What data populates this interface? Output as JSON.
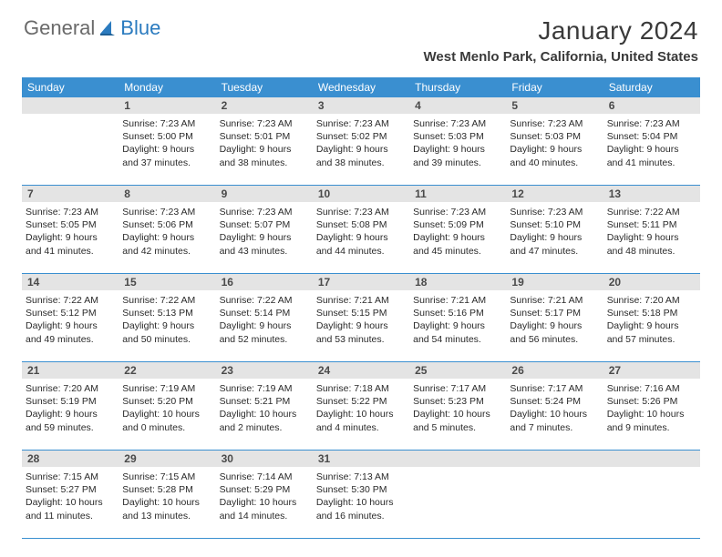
{
  "logo": {
    "text1": "General",
    "text2": "Blue",
    "icon_color": "#2b7bbf"
  },
  "title": "January 2024",
  "location": "West Menlo Park, California, United States",
  "colors": {
    "header_bg": "#3a8fd0",
    "daynum_bg": "#e4e4e4",
    "border": "#3a8fd0"
  },
  "dow": [
    "Sunday",
    "Monday",
    "Tuesday",
    "Wednesday",
    "Thursday",
    "Friday",
    "Saturday"
  ],
  "start_offset": 1,
  "days": [
    {
      "n": 1,
      "sunrise": "7:23 AM",
      "sunset": "5:00 PM",
      "daylight": "9 hours and 37 minutes."
    },
    {
      "n": 2,
      "sunrise": "7:23 AM",
      "sunset": "5:01 PM",
      "daylight": "9 hours and 38 minutes."
    },
    {
      "n": 3,
      "sunrise": "7:23 AM",
      "sunset": "5:02 PM",
      "daylight": "9 hours and 38 minutes."
    },
    {
      "n": 4,
      "sunrise": "7:23 AM",
      "sunset": "5:03 PM",
      "daylight": "9 hours and 39 minutes."
    },
    {
      "n": 5,
      "sunrise": "7:23 AM",
      "sunset": "5:03 PM",
      "daylight": "9 hours and 40 minutes."
    },
    {
      "n": 6,
      "sunrise": "7:23 AM",
      "sunset": "5:04 PM",
      "daylight": "9 hours and 41 minutes."
    },
    {
      "n": 7,
      "sunrise": "7:23 AM",
      "sunset": "5:05 PM",
      "daylight": "9 hours and 41 minutes."
    },
    {
      "n": 8,
      "sunrise": "7:23 AM",
      "sunset": "5:06 PM",
      "daylight": "9 hours and 42 minutes."
    },
    {
      "n": 9,
      "sunrise": "7:23 AM",
      "sunset": "5:07 PM",
      "daylight": "9 hours and 43 minutes."
    },
    {
      "n": 10,
      "sunrise": "7:23 AM",
      "sunset": "5:08 PM",
      "daylight": "9 hours and 44 minutes."
    },
    {
      "n": 11,
      "sunrise": "7:23 AM",
      "sunset": "5:09 PM",
      "daylight": "9 hours and 45 minutes."
    },
    {
      "n": 12,
      "sunrise": "7:23 AM",
      "sunset": "5:10 PM",
      "daylight": "9 hours and 47 minutes."
    },
    {
      "n": 13,
      "sunrise": "7:22 AM",
      "sunset": "5:11 PM",
      "daylight": "9 hours and 48 minutes."
    },
    {
      "n": 14,
      "sunrise": "7:22 AM",
      "sunset": "5:12 PM",
      "daylight": "9 hours and 49 minutes."
    },
    {
      "n": 15,
      "sunrise": "7:22 AM",
      "sunset": "5:13 PM",
      "daylight": "9 hours and 50 minutes."
    },
    {
      "n": 16,
      "sunrise": "7:22 AM",
      "sunset": "5:14 PM",
      "daylight": "9 hours and 52 minutes."
    },
    {
      "n": 17,
      "sunrise": "7:21 AM",
      "sunset": "5:15 PM",
      "daylight": "9 hours and 53 minutes."
    },
    {
      "n": 18,
      "sunrise": "7:21 AM",
      "sunset": "5:16 PM",
      "daylight": "9 hours and 54 minutes."
    },
    {
      "n": 19,
      "sunrise": "7:21 AM",
      "sunset": "5:17 PM",
      "daylight": "9 hours and 56 minutes."
    },
    {
      "n": 20,
      "sunrise": "7:20 AM",
      "sunset": "5:18 PM",
      "daylight": "9 hours and 57 minutes."
    },
    {
      "n": 21,
      "sunrise": "7:20 AM",
      "sunset": "5:19 PM",
      "daylight": "9 hours and 59 minutes."
    },
    {
      "n": 22,
      "sunrise": "7:19 AM",
      "sunset": "5:20 PM",
      "daylight": "10 hours and 0 minutes."
    },
    {
      "n": 23,
      "sunrise": "7:19 AM",
      "sunset": "5:21 PM",
      "daylight": "10 hours and 2 minutes."
    },
    {
      "n": 24,
      "sunrise": "7:18 AM",
      "sunset": "5:22 PM",
      "daylight": "10 hours and 4 minutes."
    },
    {
      "n": 25,
      "sunrise": "7:17 AM",
      "sunset": "5:23 PM",
      "daylight": "10 hours and 5 minutes."
    },
    {
      "n": 26,
      "sunrise": "7:17 AM",
      "sunset": "5:24 PM",
      "daylight": "10 hours and 7 minutes."
    },
    {
      "n": 27,
      "sunrise": "7:16 AM",
      "sunset": "5:26 PM",
      "daylight": "10 hours and 9 minutes."
    },
    {
      "n": 28,
      "sunrise": "7:15 AM",
      "sunset": "5:27 PM",
      "daylight": "10 hours and 11 minutes."
    },
    {
      "n": 29,
      "sunrise": "7:15 AM",
      "sunset": "5:28 PM",
      "daylight": "10 hours and 13 minutes."
    },
    {
      "n": 30,
      "sunrise": "7:14 AM",
      "sunset": "5:29 PM",
      "daylight": "10 hours and 14 minutes."
    },
    {
      "n": 31,
      "sunrise": "7:13 AM",
      "sunset": "5:30 PM",
      "daylight": "10 hours and 16 minutes."
    }
  ],
  "labels": {
    "sunrise": "Sunrise:",
    "sunset": "Sunset:",
    "daylight": "Daylight:"
  }
}
